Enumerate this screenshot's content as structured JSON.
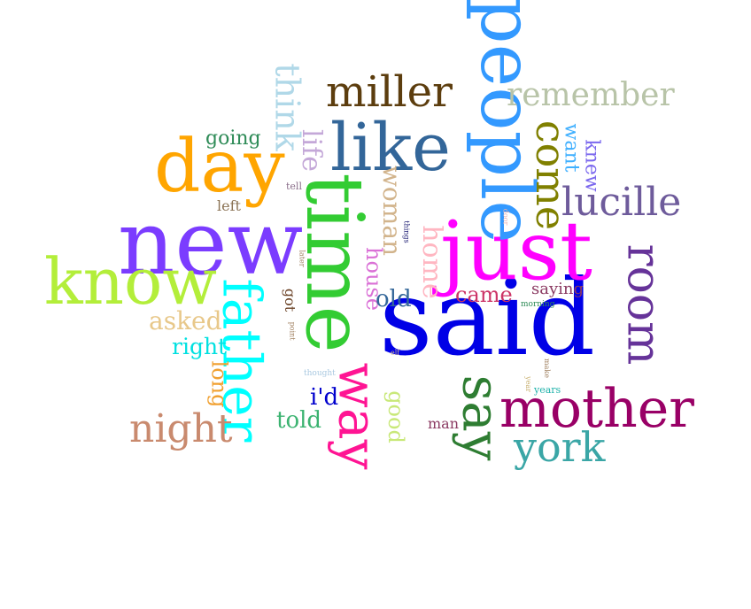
{
  "words": [
    {
      "text": "said",
      "color": "#0000e6",
      "vertical": false
    },
    {
      "text": "just",
      "color": "#ff00ff",
      "vertical": false
    },
    {
      "text": "new",
      "color": "#7b3cff",
      "vertical": false
    },
    {
      "text": "time",
      "color": "#33cc33",
      "vertical": true
    },
    {
      "text": "people",
      "color": "#3399ff",
      "vertical": true
    },
    {
      "text": "father",
      "color": "#00ffff",
      "vertical": true
    },
    {
      "text": "know",
      "color": "#b3ee3a",
      "vertical": false
    },
    {
      "text": "day",
      "color": "#ffa500",
      "vertical": false
    },
    {
      "text": "like",
      "color": "#336699",
      "vertical": false
    },
    {
      "text": "mother",
      "color": "#990066",
      "vertical": false
    },
    {
      "text": "way",
      "color": "#ff1493",
      "vertical": true
    },
    {
      "text": "room",
      "color": "#663399",
      "vertical": true
    },
    {
      "text": "say",
      "color": "#2e7d32",
      "vertical": true
    },
    {
      "text": "miller",
      "color": "#5c3d0e",
      "vertical": false
    },
    {
      "text": "come",
      "color": "#808000",
      "vertical": true
    },
    {
      "text": "lucille",
      "color": "#6e5b9b",
      "vertical": false
    },
    {
      "text": "remember",
      "color": "#b8c4a8",
      "vertical": false
    },
    {
      "text": "york",
      "color": "#3aa6a6",
      "vertical": false
    },
    {
      "text": "night",
      "color": "#c98a6e",
      "vertical": false
    },
    {
      "text": "think",
      "color": "#b0d8e8",
      "vertical": true
    },
    {
      "text": "home",
      "color": "#ffb6c1",
      "vertical": true
    },
    {
      "text": "woman",
      "color": "#d2b48c",
      "vertical": true
    },
    {
      "text": "life",
      "color": "#c4a8d8",
      "vertical": true
    },
    {
      "text": "asked",
      "color": "#e8c88a",
      "vertical": false
    },
    {
      "text": "right",
      "color": "#00e0e0",
      "vertical": false
    },
    {
      "text": "long",
      "color": "#f0a030",
      "vertical": true
    },
    {
      "text": "told",
      "color": "#3cb371",
      "vertical": false
    },
    {
      "text": "house",
      "color": "#da70d6",
      "vertical": true
    },
    {
      "text": "old",
      "color": "#336699",
      "vertical": false
    },
    {
      "text": "came",
      "color": "#cc3366",
      "vertical": false
    },
    {
      "text": "i'd",
      "color": "#0000cd",
      "vertical": false
    },
    {
      "text": "good",
      "color": "#c8e878",
      "vertical": true
    },
    {
      "text": "going",
      "color": "#2e8b57",
      "vertical": false
    },
    {
      "text": "want",
      "color": "#40b0ff",
      "vertical": true
    },
    {
      "text": "knew",
      "color": "#7b68ee",
      "vertical": true
    },
    {
      "text": "saying",
      "color": "#8b3a62",
      "vertical": false
    },
    {
      "text": "man",
      "color": "#8b3a62",
      "vertical": false
    },
    {
      "text": "left",
      "color": "#8b7355",
      "vertical": false
    },
    {
      "text": "got",
      "color": "#6b4226",
      "vertical": true
    },
    {
      "text": "tell",
      "color": "#8b6f8b",
      "vertical": false
    },
    {
      "text": "years",
      "color": "#20b2aa",
      "vertical": false
    },
    {
      "text": "things",
      "color": "#191970",
      "vertical": true
    },
    {
      "text": "morning",
      "color": "#2e8b57",
      "vertical": false
    },
    {
      "text": "later",
      "color": "#a08060",
      "vertical": true
    },
    {
      "text": "point",
      "color": "#a08060",
      "vertical": true
    },
    {
      "text": "thought",
      "color": "#a8c8e0",
      "vertical": false
    },
    {
      "text": "elf",
      "color": "#d2b48c",
      "vertical": false
    },
    {
      "text": "make",
      "color": "#a08060",
      "vertical": true
    },
    {
      "text": "year",
      "color": "#c8b070",
      "vertical": true
    },
    {
      "text": "door",
      "color": "#e8b0b0",
      "vertical": true
    }
  ]
}
